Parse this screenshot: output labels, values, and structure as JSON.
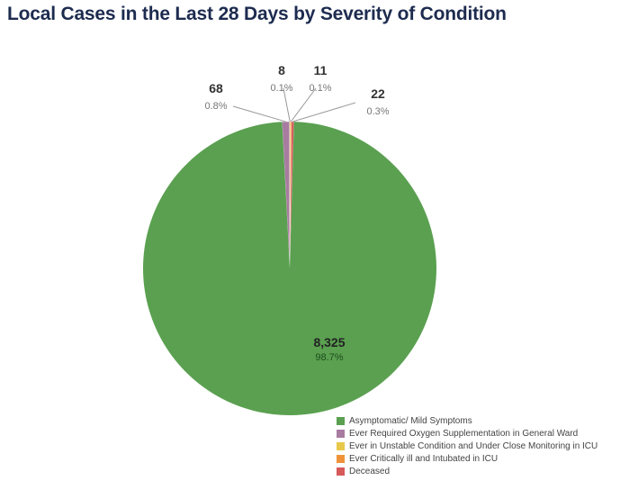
{
  "title": "Local Cases in the Last 28 Days by Severity of Condition",
  "chart_data": {
    "type": "pie",
    "title": "Local Cases in the Last 28 Days by Severity of Condition",
    "legend_position": "bottom-right",
    "slices": [
      {
        "label": "Ever Required Oxygen Supplementation in General Ward",
        "value": 68,
        "value_label": "68",
        "percent_label": "0.8%",
        "color": "#a87ca0"
      },
      {
        "label": "Ever in Unstable Condition and Under Close Monitoring in ICU",
        "value": 8,
        "value_label": "8",
        "percent_label": "0.1%",
        "color": "#e8c84a"
      },
      {
        "label": "Ever Critically ill and Intubated in ICU",
        "value": 11,
        "value_label": "11",
        "percent_label": "0.1%",
        "color": "#f0923a"
      },
      {
        "label": "Deceased",
        "value": 22,
        "value_label": "22",
        "percent_label": "0.3%",
        "color": "#d65a5a"
      },
      {
        "label": "Asymptomatic/ Mild Symptoms",
        "value": 8325,
        "value_label": "8,325",
        "percent_label": "98.7%",
        "color": "#5aa050"
      }
    ],
    "legend": [
      {
        "label": "Asymptomatic/ Mild Symptoms",
        "color": "#5aa050"
      },
      {
        "label": "Ever Required Oxygen Supplementation in General Ward",
        "color": "#a87ca0"
      },
      {
        "label": "Ever in Unstable Condition and Under Close Monitoring in ICU",
        "color": "#e8c84a"
      },
      {
        "label": "Ever Critically ill and Intubated in ICU",
        "color": "#f0923a"
      },
      {
        "label": "Deceased",
        "color": "#d65a5a"
      }
    ]
  }
}
